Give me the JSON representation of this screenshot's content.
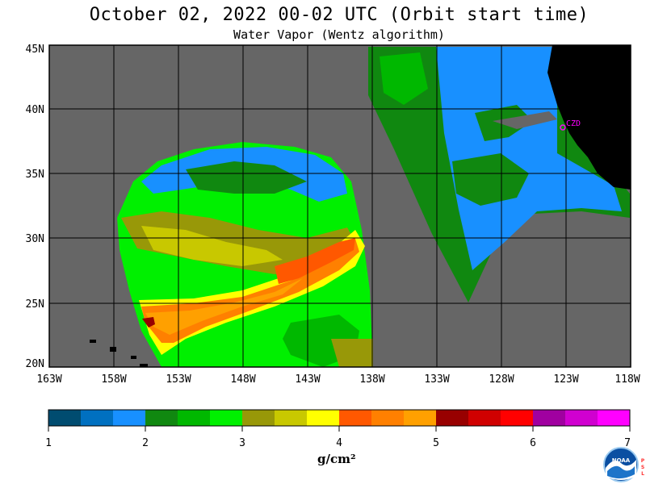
{
  "header": {
    "title": "October 02, 2022  00-02 UTC  (Orbit start time)",
    "subtitle": "Water Vapor (Wentz algorithm)"
  },
  "map": {
    "lat_labels": [
      "45N",
      "40N",
      "35N",
      "30N",
      "25N",
      "20N"
    ],
    "lon_labels": [
      "163W",
      "158W",
      "153W",
      "148W",
      "143W",
      "138W",
      "133W",
      "128W",
      "123W",
      "118W"
    ],
    "lat_range": [
      20,
      45
    ],
    "lon_range": [
      -163,
      -118
    ],
    "station_label": "CZD",
    "colors": {
      "no_data": "#666666",
      "land": "#000000",
      "grid": "#000000"
    }
  },
  "colorbar": {
    "tick_labels": [
      "1",
      "2",
      "3",
      "4",
      "5",
      "6",
      "7"
    ],
    "unit": "g/cm²",
    "colors": [
      "#004c70",
      "#0070c0",
      "#1890ff",
      "#108810",
      "#00b800",
      "#00f000",
      "#989808",
      "#c8c800",
      "#ffff00",
      "#ff5800",
      "#ff8000",
      "#ffa000",
      "#980000",
      "#d00000",
      "#ff0000",
      "#a000a0",
      "#d000d0",
      "#ff00ff"
    ]
  },
  "logo": {
    "name": "NOAA",
    "side_text": "PSL"
  }
}
